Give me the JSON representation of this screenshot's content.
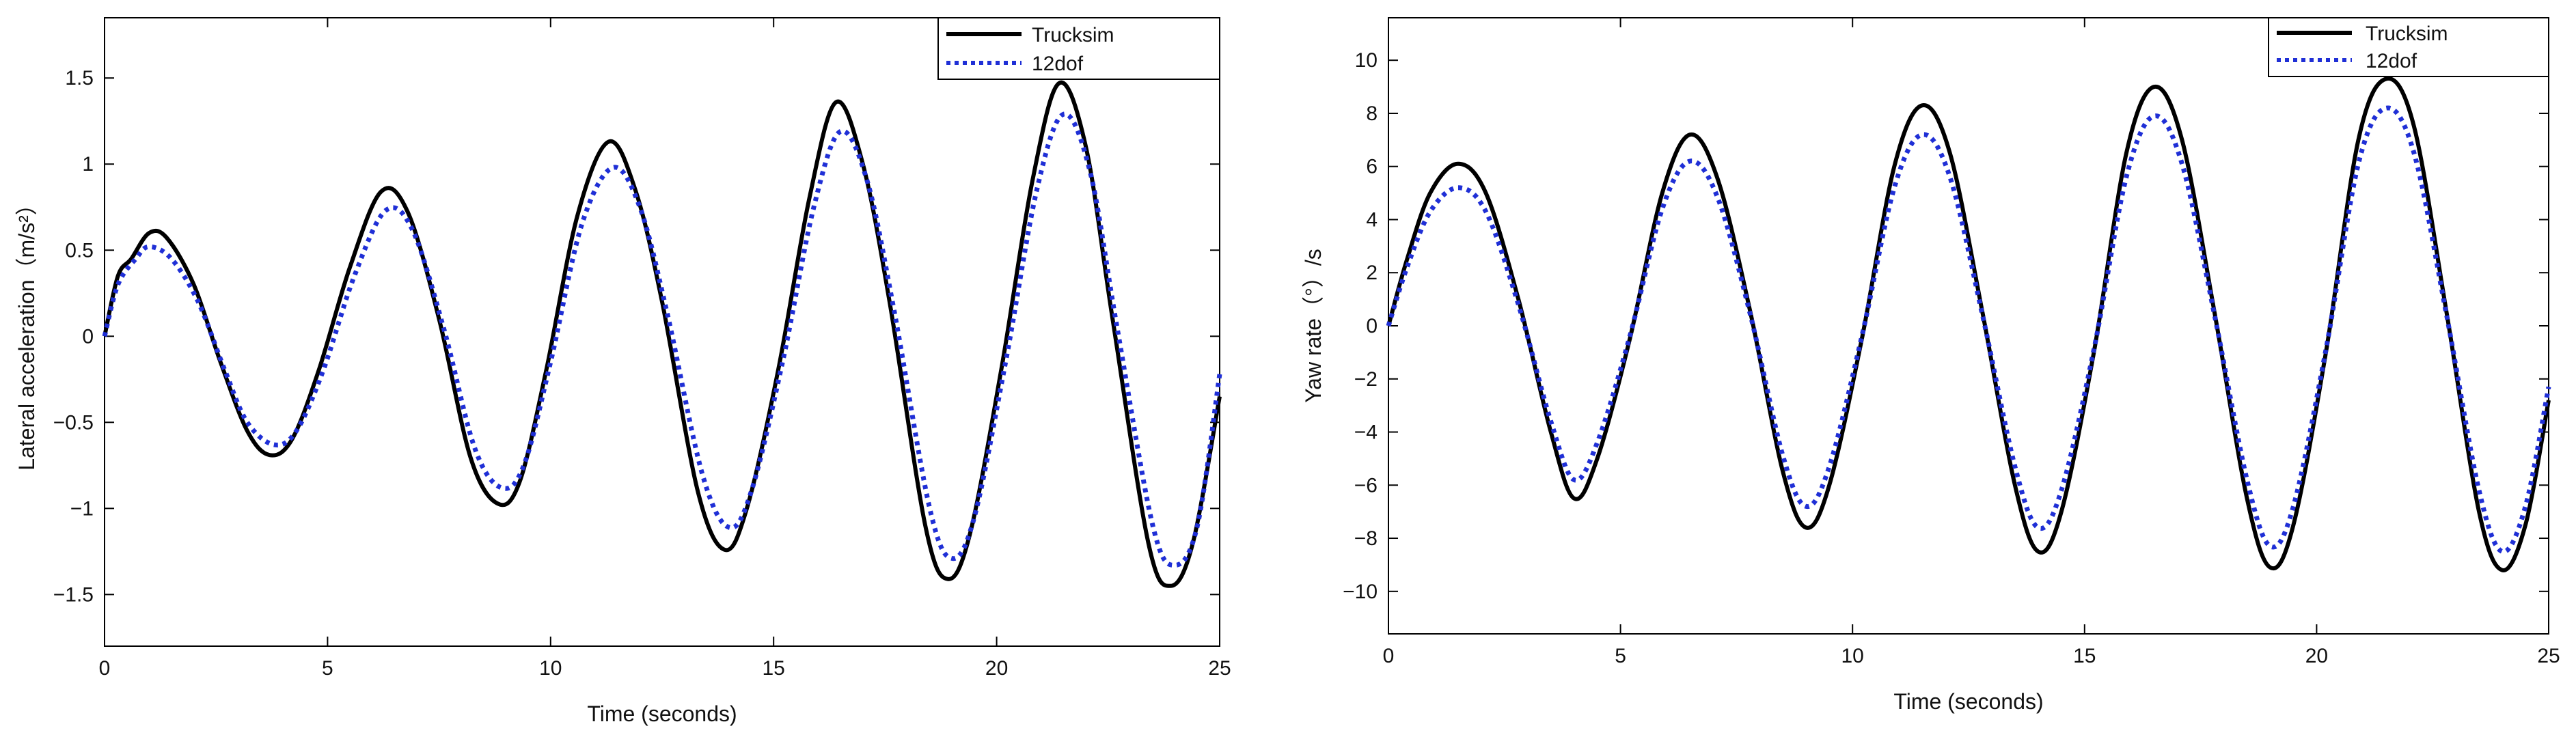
{
  "chart_data": [
    {
      "type": "line",
      "xlabel": "Time (seconds)",
      "ylabel": "Lateral acceleration（m/s²）",
      "xlim": [
        0,
        25
      ],
      "ylim": [
        -1.8,
        1.85
      ],
      "xticks": [
        0,
        5,
        10,
        15,
        20,
        25
      ],
      "yticks": [
        -1.5,
        -1,
        -0.5,
        0,
        0.5,
        1,
        1.5
      ],
      "xtick_labels": [
        "0",
        "5",
        "10",
        "15",
        "20",
        "25"
      ],
      "ytick_labels": [
        "−1.5",
        "−1",
        "−0.5",
        "0",
        "0.5",
        "1",
        "1.5"
      ],
      "grid": false,
      "legend_position": "top-right",
      "series": [
        {
          "name": "Trucksim",
          "style": "solid",
          "color": "#000000",
          "x": [
            0,
            0.3,
            0.6,
            1.0,
            1.4,
            2.0,
            2.6,
            3.2,
            3.7,
            4.2,
            4.8,
            5.5,
            6.2,
            6.8,
            7.5,
            8.2,
            8.8,
            9.3,
            9.9,
            10.6,
            11.3,
            11.9,
            12.5,
            13.3,
            13.9,
            14.4,
            15.1,
            15.8,
            16.4,
            17.0,
            17.6,
            18.4,
            18.9,
            19.4,
            20.1,
            20.8,
            21.4,
            22.0,
            22.6,
            23.4,
            23.9,
            24.4,
            25.0
          ],
          "y": [
            0,
            0.35,
            0.45,
            0.6,
            0.57,
            0.3,
            -0.15,
            -0.55,
            -0.69,
            -0.6,
            -0.2,
            0.4,
            0.84,
            0.72,
            0.1,
            -0.7,
            -0.97,
            -0.85,
            -0.2,
            0.7,
            1.13,
            0.85,
            0.2,
            -0.9,
            -1.24,
            -1.0,
            -0.2,
            0.8,
            1.36,
            1.0,
            0.2,
            -1.1,
            -1.41,
            -1.15,
            -0.2,
            0.9,
            1.47,
            1.1,
            0.1,
            -1.2,
            -1.45,
            -1.2,
            -0.35
          ]
        },
        {
          "name": "12dof",
          "style": "dotted",
          "color": "#1f2fd6",
          "x": [
            0,
            0.3,
            0.7,
            1.0,
            1.5,
            2.1,
            2.7,
            3.2,
            3.8,
            4.3,
            4.9,
            5.6,
            6.3,
            6.9,
            7.6,
            8.3,
            8.9,
            9.4,
            10.0,
            10.7,
            11.4,
            12.0,
            12.6,
            13.4,
            14.0,
            14.5,
            15.2,
            15.9,
            16.5,
            17.1,
            17.7,
            18.5,
            19.0,
            19.5,
            20.2,
            20.9,
            21.5,
            22.1,
            22.7,
            23.5,
            24.0,
            24.5,
            25.0
          ],
          "y": [
            0,
            0.3,
            0.45,
            0.52,
            0.45,
            0.2,
            -0.2,
            -0.5,
            -0.63,
            -0.55,
            -0.2,
            0.35,
            0.73,
            0.62,
            0.05,
            -0.65,
            -0.88,
            -0.75,
            -0.15,
            0.65,
            0.98,
            0.75,
            0.15,
            -0.8,
            -1.11,
            -0.9,
            -0.15,
            0.75,
            1.19,
            0.9,
            0.15,
            -1.0,
            -1.29,
            -1.05,
            -0.15,
            0.85,
            1.29,
            0.95,
            0.05,
            -1.1,
            -1.33,
            -1.1,
            -0.22
          ]
        }
      ]
    },
    {
      "type": "line",
      "xlabel": "Time (seconds)",
      "ylabel": "Yaw rate（°）/s",
      "xlim": [
        0,
        25
      ],
      "ylim": [
        -11.6,
        11.6
      ],
      "xticks": [
        0,
        5,
        10,
        15,
        20,
        25
      ],
      "yticks": [
        -10,
        -8,
        -6,
        -4,
        -2,
        0,
        2,
        4,
        6,
        8,
        10
      ],
      "xtick_labels": [
        "0",
        "5",
        "10",
        "15",
        "20",
        "25"
      ],
      "ytick_labels": [
        "−10",
        "−8",
        "−6",
        "−4",
        "−2",
        "0",
        "2",
        "4",
        "6",
        "8",
        "10"
      ],
      "grid": false,
      "legend_position": "top-right",
      "series": [
        {
          "name": "Trucksim",
          "style": "solid",
          "color": "#000000",
          "x": [
            0,
            0.4,
            0.9,
            1.5,
            2.1,
            2.8,
            3.5,
            4.0,
            4.5,
            5.2,
            5.9,
            6.5,
            7.1,
            7.8,
            8.5,
            9.0,
            9.5,
            10.2,
            10.9,
            11.5,
            12.1,
            12.8,
            13.5,
            14.0,
            14.5,
            15.2,
            15.9,
            16.5,
            17.1,
            17.8,
            18.5,
            19.0,
            19.5,
            20.2,
            20.9,
            21.5,
            22.1,
            22.8,
            23.5,
            24.0,
            24.5,
            25.0
          ],
          "y": [
            0,
            2.5,
            5.0,
            6.1,
            5.0,
            1.0,
            -4.0,
            -6.5,
            -5.0,
            -0.5,
            5.0,
            7.2,
            5.5,
            0.5,
            -5.5,
            -7.6,
            -6.0,
            -0.5,
            6.0,
            8.3,
            6.5,
            0.5,
            -6.0,
            -8.5,
            -7.0,
            -1.0,
            6.5,
            9.0,
            7.0,
            0.5,
            -6.5,
            -9.1,
            -7.5,
            -1.0,
            7.0,
            9.3,
            7.5,
            0.5,
            -7.0,
            -9.2,
            -7.5,
            -2.8
          ]
        },
        {
          "name": "12dof",
          "style": "dotted",
          "color": "#1f2fd6",
          "x": [
            0,
            0.4,
            0.9,
            1.5,
            2.1,
            2.8,
            3.5,
            4.0,
            4.5,
            5.2,
            5.9,
            6.5,
            7.1,
            7.8,
            8.5,
            9.0,
            9.5,
            10.2,
            10.9,
            11.5,
            12.1,
            12.8,
            13.5,
            14.0,
            14.5,
            15.2,
            15.9,
            16.5,
            17.1,
            17.8,
            18.5,
            19.0,
            19.5,
            20.2,
            20.9,
            21.5,
            22.1,
            22.8,
            23.5,
            24.0,
            24.5,
            25.0
          ],
          "y": [
            0,
            2.2,
            4.3,
            5.2,
            4.3,
            0.8,
            -3.6,
            -5.8,
            -4.4,
            -0.4,
            4.4,
            6.2,
            4.8,
            0.4,
            -4.9,
            -6.8,
            -5.3,
            -0.4,
            5.2,
            7.2,
            5.6,
            0.4,
            -5.3,
            -7.6,
            -6.2,
            -0.9,
            5.6,
            7.9,
            6.1,
            0.4,
            -5.8,
            -8.3,
            -6.8,
            -0.9,
            6.1,
            8.2,
            6.5,
            0.4,
            -6.2,
            -8.5,
            -6.8,
            -2.3
          ]
        }
      ]
    }
  ]
}
